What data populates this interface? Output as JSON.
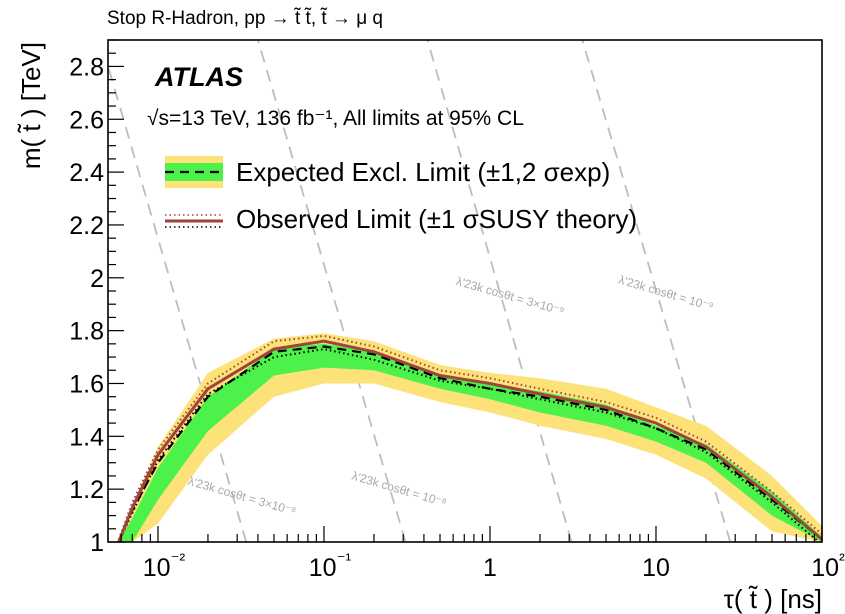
{
  "header": "Stop R-Hadron, pp → t̃ t̃,  t̃ → μ q",
  "experiment": "ATLAS",
  "luminosity_text": "√s=13 TeV, 136 fb⁻¹, All limits at 95% CL",
  "legend": {
    "expected": "Expected Excl. Limit (±1,2 σexp)",
    "observed": "Observed Limit (±1 σSUSY theory)"
  },
  "lambda_lines": [
    {
      "label": "λ'23k cosθt = 3×10⁻⁸",
      "x_at_bottom": 0.034,
      "x_at_top": 0.0045
    },
    {
      "label": "λ'23k cosθt = 10⁻⁸",
      "x_at_bottom": 0.31,
      "x_at_top": 0.04
    },
    {
      "label": "λ'23k cosθt = 3×10⁻⁹",
      "x_at_bottom": 3.1,
      "x_at_top": 0.42
    },
    {
      "label": "λ'23k cosθt = 10⁻⁹",
      "x_at_bottom": 28,
      "x_at_top": 3.6
    }
  ],
  "colors": {
    "observed": "#a0433d",
    "expected": "#000000",
    "band_1sigma": "#4cf24a",
    "band_2sigma": "#fde27a",
    "lambda_lines": "#bdbdbd"
  },
  "chart_data": {
    "type": "line",
    "xlabel": "τ( t̃ ) [ns]",
    "ylabel": "m( t̃ ) [TeV]",
    "xscale": "log",
    "xlim": [
      0.005,
      100
    ],
    "ylim": [
      1.0,
      2.9
    ],
    "x_ticks": [
      "10⁻²",
      "10⁻¹",
      "1",
      "10",
      "10²"
    ],
    "y_ticks": [
      "1",
      "1.2",
      "1.4",
      "1.6",
      "1.8",
      "2",
      "2.2",
      "2.4",
      "2.6",
      "2.8"
    ],
    "x": [
      0.0058,
      0.007,
      0.01,
      0.02,
      0.05,
      0.1,
      0.2,
      0.5,
      1,
      2,
      5,
      10,
      20,
      50,
      100
    ],
    "series": [
      {
        "name": "Observed Limit",
        "values": [
          1.0,
          1.13,
          1.33,
          1.58,
          1.73,
          1.76,
          1.72,
          1.63,
          1.6,
          1.56,
          1.51,
          1.45,
          1.36,
          1.17,
          1.01
        ]
      },
      {
        "name": "Expected Excl. Limit",
        "values": [
          1.0,
          1.12,
          1.3,
          1.55,
          1.72,
          1.74,
          1.71,
          1.62,
          1.58,
          1.55,
          1.5,
          1.43,
          1.35,
          1.16,
          1.01
        ]
      },
      {
        "name": "observed_theory_up",
        "values": [
          1.01,
          1.15,
          1.35,
          1.6,
          1.76,
          1.78,
          1.74,
          1.65,
          1.62,
          1.58,
          1.53,
          1.47,
          1.38,
          1.19,
          1.03
        ]
      },
      {
        "name": "observed_theory_down",
        "values": [
          1.0,
          1.11,
          1.31,
          1.56,
          1.7,
          1.73,
          1.69,
          1.61,
          1.58,
          1.54,
          1.49,
          1.43,
          1.34,
          1.15,
          0.99
        ]
      }
    ],
    "band_1sigma": {
      "upper": [
        1.0,
        1.09,
        1.28,
        1.55,
        1.73,
        1.75,
        1.72,
        1.63,
        1.6,
        1.57,
        1.52,
        1.44,
        1.37,
        1.19,
        1.02
      ],
      "lower": [
        1.0,
        1.0,
        1.16,
        1.42,
        1.63,
        1.66,
        1.65,
        1.58,
        1.54,
        1.49,
        1.44,
        1.38,
        1.3,
        1.1,
        1.0
      ]
    },
    "band_2sigma": {
      "upper": [
        1.0,
        1.14,
        1.36,
        1.64,
        1.77,
        1.79,
        1.76,
        1.67,
        1.64,
        1.62,
        1.58,
        1.51,
        1.44,
        1.25,
        1.06
      ],
      "lower": [
        1.0,
        1.0,
        1.07,
        1.33,
        1.55,
        1.6,
        1.6,
        1.53,
        1.49,
        1.44,
        1.39,
        1.33,
        1.24,
        1.04,
        1.0
      ]
    }
  }
}
